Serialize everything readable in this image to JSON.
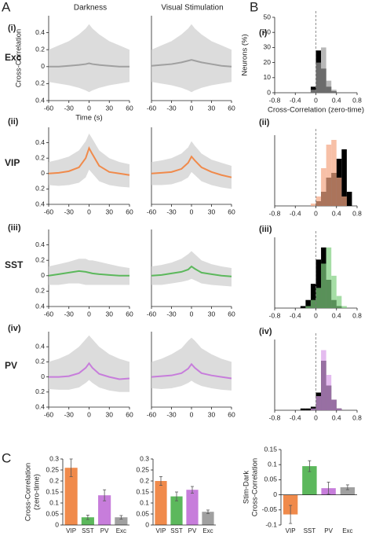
{
  "panel_labels": [
    "A",
    "B",
    "C"
  ],
  "column_titles": [
    "Darkness",
    "Visual Stimulation"
  ],
  "row_labels": [
    {
      "numeral": "(i)",
      "cell": "Exc"
    },
    {
      "numeral": "(ii)",
      "cell": "VIP"
    },
    {
      "numeral": "(iii)",
      "cell": "SST"
    },
    {
      "numeral": "(iv)",
      "cell": "PV"
    }
  ],
  "hist_row_labels": [
    "(i)",
    "(ii)",
    "(iii)",
    "(iv)"
  ],
  "chart_data": [
    {
      "type": "line",
      "ylabel": "Cross-Correlation",
      "xlabel": "Time (s)",
      "x": [
        -60,
        -45,
        -30,
        -15,
        -5,
        0,
        5,
        15,
        30,
        45,
        60
      ],
      "xlim": [
        -60,
        60
      ],
      "xticks": [
        -60,
        -30,
        0,
        30,
        60
      ],
      "ylim": [
        -0.4,
        0.6
      ],
      "yticks": [
        {
          "value": -0.4,
          "label": "0.4"
        },
        {
          "value": -0.2,
          "label": "0.2"
        },
        0,
        {
          "value": 0.2,
          "label": "0.2"
        },
        {
          "value": 0.4,
          "label": "0.4"
        }
      ],
      "band": {
        "color": "#d3d3d3",
        "upper": [
          0.2,
          0.25,
          0.3,
          0.38,
          0.45,
          0.5,
          0.45,
          0.38,
          0.3,
          0.25,
          0.2
        ],
        "lower": [
          -0.18,
          -0.2,
          -0.22,
          -0.25,
          -0.28,
          -0.3,
          -0.28,
          -0.25,
          -0.22,
          -0.2,
          -0.18
        ]
      },
      "series": [
        {
          "color": "#a0a0a0",
          "values": [
            0,
            0,
            0.01,
            0.02,
            0.03,
            0.04,
            0.03,
            0.02,
            0.01,
            0,
            0
          ]
        }
      ]
    },
    {
      "type": "line",
      "x": [
        -60,
        -45,
        -30,
        -15,
        -5,
        0,
        5,
        15,
        30,
        45,
        60
      ],
      "xlim": [
        -60,
        60
      ],
      "xticks": [
        -60,
        -30,
        0,
        30,
        60
      ],
      "ylim": [
        -0.4,
        0.6
      ],
      "band": {
        "color": "#d3d3d3",
        "upper": [
          0.2,
          0.25,
          0.3,
          0.38,
          0.45,
          0.5,
          0.45,
          0.38,
          0.3,
          0.25,
          0.2
        ],
        "lower": [
          -0.18,
          -0.2,
          -0.22,
          -0.25,
          -0.28,
          -0.3,
          -0.28,
          -0.25,
          -0.22,
          -0.2,
          -0.18
        ]
      },
      "series": [
        {
          "color": "#a0a0a0",
          "values": [
            0.01,
            0.02,
            0.03,
            0.05,
            0.07,
            0.08,
            0.07,
            0.05,
            0.03,
            0.01,
            0
          ]
        }
      ]
    },
    {
      "type": "line",
      "x": [
        -60,
        -45,
        -30,
        -15,
        -5,
        0,
        5,
        15,
        30,
        45,
        60
      ],
      "xlim": [
        -60,
        60
      ],
      "xticks": [
        -60,
        -30,
        0,
        30,
        60
      ],
      "ylim": [
        -0.4,
        0.6
      ],
      "yticks": [
        {
          "value": -0.4,
          "label": "0.4"
        },
        {
          "value": -0.2,
          "label": "0.2"
        },
        0,
        {
          "value": 0.2,
          "label": "0.2"
        },
        {
          "value": 0.4,
          "label": "0.4"
        }
      ],
      "band": {
        "color": "#d3d3d3",
        "upper": [
          0.15,
          0.18,
          0.22,
          0.3,
          0.42,
          0.52,
          0.45,
          0.3,
          0.2,
          0.15,
          0.12
        ],
        "lower": [
          -0.15,
          -0.16,
          -0.15,
          -0.12,
          -0.05,
          0.05,
          0,
          -0.1,
          -0.15,
          -0.17,
          -0.18
        ]
      },
      "series": [
        {
          "color": "#f08a4b",
          "values": [
            0,
            0.01,
            0.03,
            0.08,
            0.2,
            0.33,
            0.25,
            0.1,
            0.02,
            0,
            -0.02
          ]
        }
      ]
    },
    {
      "type": "line",
      "x": [
        -60,
        -45,
        -30,
        -15,
        -5,
        0,
        5,
        15,
        30,
        45,
        60
      ],
      "xlim": [
        -60,
        60
      ],
      "xticks": [
        -60,
        -30,
        0,
        30,
        60
      ],
      "ylim": [
        -0.4,
        0.6
      ],
      "band": {
        "color": "#d3d3d3",
        "upper": [
          0.15,
          0.17,
          0.2,
          0.26,
          0.34,
          0.42,
          0.36,
          0.26,
          0.18,
          0.14,
          0.1
        ],
        "lower": [
          -0.15,
          -0.15,
          -0.14,
          -0.1,
          -0.05,
          0.02,
          -0.02,
          -0.1,
          -0.15,
          -0.18,
          -0.2
        ]
      },
      "series": [
        {
          "color": "#f08a4b",
          "values": [
            0,
            0.01,
            0.02,
            0.06,
            0.14,
            0.22,
            0.17,
            0.08,
            0.02,
            -0.02,
            -0.05
          ]
        }
      ]
    },
    {
      "type": "line",
      "x": [
        -60,
        -45,
        -30,
        -15,
        -5,
        0,
        5,
        15,
        30,
        45,
        60
      ],
      "xlim": [
        -60,
        60
      ],
      "xticks": [
        -60,
        -30,
        0,
        30,
        60
      ],
      "ylim": [
        -0.4,
        0.6
      ],
      "yticks": [
        {
          "value": -0.4,
          "label": "0.4"
        },
        {
          "value": -0.2,
          "label": "0.2"
        },
        0,
        {
          "value": 0.2,
          "label": "0.2"
        },
        {
          "value": 0.4,
          "label": "0.4"
        }
      ],
      "band": {
        "color": "#d3d3d3",
        "upper": [
          0.12,
          0.15,
          0.18,
          0.22,
          0.22,
          0.2,
          0.2,
          0.18,
          0.15,
          0.12,
          0.1
        ],
        "lower": [
          -0.12,
          -0.12,
          -0.1,
          -0.1,
          -0.12,
          -0.12,
          -0.12,
          -0.12,
          -0.12,
          -0.12,
          -0.12
        ]
      },
      "series": [
        {
          "color": "#5cb85c",
          "values": [
            0,
            0.02,
            0.04,
            0.06,
            0.05,
            0.04,
            0.03,
            0.02,
            0.01,
            0,
            0
          ]
        }
      ]
    },
    {
      "type": "line",
      "x": [
        -60,
        -45,
        -30,
        -15,
        -5,
        0,
        5,
        15,
        30,
        45,
        60
      ],
      "xlim": [
        -60,
        60
      ],
      "xticks": [
        -60,
        -30,
        0,
        30,
        60
      ],
      "ylim": [
        -0.4,
        0.6
      ],
      "band": {
        "color": "#d3d3d3",
        "upper": [
          0.12,
          0.14,
          0.17,
          0.22,
          0.28,
          0.32,
          0.28,
          0.2,
          0.15,
          0.12,
          0.1
        ],
        "lower": [
          -0.12,
          -0.12,
          -0.1,
          -0.08,
          -0.06,
          -0.04,
          -0.06,
          -0.1,
          -0.12,
          -0.13,
          -0.14
        ]
      },
      "series": [
        {
          "color": "#5cb85c",
          "values": [
            0,
            0.01,
            0.03,
            0.05,
            0.08,
            0.12,
            0.09,
            0.04,
            0.02,
            0,
            -0.01
          ]
        }
      ]
    },
    {
      "type": "line",
      "x": [
        -60,
        -45,
        -30,
        -15,
        -5,
        0,
        5,
        15,
        30,
        45,
        60
      ],
      "xlim": [
        -60,
        60
      ],
      "xticks": [
        -60,
        -30,
        0,
        30,
        60
      ],
      "ylim": [
        -0.4,
        0.6
      ],
      "yticks": [
        {
          "value": -0.4,
          "label": "0.4"
        },
        {
          "value": -0.2,
          "label": "0.2"
        },
        0,
        {
          "value": 0.2,
          "label": "0.2"
        },
        {
          "value": 0.4,
          "label": "0.4"
        }
      ],
      "band": {
        "color": "#d3d3d3",
        "upper": [
          0.2,
          0.24,
          0.3,
          0.4,
          0.5,
          0.55,
          0.5,
          0.4,
          0.3,
          0.24,
          0.2
        ],
        "lower": [
          -0.16,
          -0.17,
          -0.17,
          -0.14,
          -0.08,
          -0.04,
          -0.08,
          -0.14,
          -0.18,
          -0.2,
          -0.2
        ]
      },
      "series": [
        {
          "color": "#c77ddb",
          "values": [
            0,
            0,
            0.01,
            0.05,
            0.12,
            0.18,
            0.12,
            0.04,
            0,
            -0.03,
            -0.02
          ]
        }
      ]
    },
    {
      "type": "line",
      "x": [
        -60,
        -45,
        -30,
        -15,
        -5,
        0,
        5,
        15,
        30,
        45,
        60
      ],
      "xlim": [
        -60,
        60
      ],
      "xticks": [
        -60,
        -30,
        0,
        30,
        60
      ],
      "ylim": [
        -0.4,
        0.6
      ],
      "band": {
        "color": "#d3d3d3",
        "upper": [
          0.2,
          0.24,
          0.3,
          0.38,
          0.48,
          0.52,
          0.48,
          0.38,
          0.3,
          0.24,
          0.2
        ],
        "lower": [
          -0.15,
          -0.16,
          -0.15,
          -0.12,
          -0.08,
          -0.05,
          -0.08,
          -0.12,
          -0.15,
          -0.17,
          -0.18
        ]
      },
      "series": [
        {
          "color": "#c77ddb",
          "values": [
            0,
            0.01,
            0.02,
            0.05,
            0.11,
            0.17,
            0.12,
            0.05,
            0.02,
            0,
            -0.02
          ]
        }
      ]
    },
    {
      "type": "histogram",
      "ylabel": "Neurons (%)",
      "xlabel": "Cross-Correlation (zero-time)",
      "bins": [
        -0.8,
        -0.7,
        -0.6,
        -0.5,
        -0.4,
        -0.3,
        -0.2,
        -0.1,
        0,
        0.1,
        0.2,
        0.3,
        0.4,
        0.5,
        0.6,
        0.7,
        0.8
      ],
      "xlim": [
        -0.8,
        0.8
      ],
      "xticks": [
        -0.8,
        -0.4,
        0,
        0.4,
        0.8
      ],
      "ylim": [
        0,
        50
      ],
      "yticks": [
        0,
        10,
        20,
        30,
        40,
        50
      ],
      "reference_x": 0,
      "series": [
        {
          "color": "#000000",
          "values": [
            0,
            0,
            0,
            0,
            0,
            0,
            0,
            4,
            28,
            16,
            4,
            1,
            0,
            0,
            0,
            0
          ]
        },
        {
          "color": "#9a9a9a",
          "values": [
            0,
            0,
            0,
            0,
            0,
            0,
            0,
            2,
            20,
            30,
            8,
            2,
            0,
            0,
            0,
            0
          ]
        }
      ]
    },
    {
      "type": "histogram",
      "bins": [
        -0.8,
        -0.7,
        -0.6,
        -0.5,
        -0.4,
        -0.3,
        -0.2,
        -0.1,
        0,
        0.1,
        0.2,
        0.3,
        0.4,
        0.5,
        0.6,
        0.7,
        0.8
      ],
      "xlim": [
        -0.8,
        0.8
      ],
      "xticks": [
        -0.8,
        -0.4,
        0,
        0.4,
        0.8
      ],
      "ylim": [
        0,
        30
      ],
      "reference_x": 0,
      "series": [
        {
          "color": "#000000",
          "values": [
            0,
            0,
            0,
            0,
            0,
            0,
            0,
            0,
            2,
            6,
            12,
            14,
            20,
            24,
            6,
            0
          ]
        },
        {
          "color": "#f4a582",
          "values": [
            0,
            0,
            0,
            0,
            0,
            0,
            0,
            1,
            4,
            16,
            26,
            28,
            12,
            4,
            0,
            0
          ]
        }
      ]
    },
    {
      "type": "histogram",
      "bins": [
        -0.8,
        -0.7,
        -0.6,
        -0.5,
        -0.4,
        -0.3,
        -0.2,
        -0.1,
        0,
        0.1,
        0.2,
        0.3,
        0.4,
        0.5,
        0.6,
        0.7,
        0.8
      ],
      "xlim": [
        -0.8,
        0.8
      ],
      "xticks": [
        -0.8,
        -0.4,
        0,
        0.4,
        0.8
      ],
      "ylim": [
        0,
        35
      ],
      "reference_x": 0,
      "series": [
        {
          "color": "#000000",
          "values": [
            0,
            0,
            0,
            0,
            0,
            1,
            4,
            12,
            24,
            30,
            14,
            4,
            1,
            0,
            0,
            0
          ]
        },
        {
          "color": "#7fcf7f",
          "values": [
            0,
            0,
            0,
            0,
            0,
            0,
            1,
            4,
            10,
            22,
            30,
            16,
            6,
            1,
            0,
            0
          ]
        }
      ]
    },
    {
      "type": "histogram",
      "bins": [
        -0.8,
        -0.7,
        -0.6,
        -0.5,
        -0.4,
        -0.3,
        -0.2,
        -0.1,
        0,
        0.1,
        0.2,
        0.3,
        0.4,
        0.5,
        0.6,
        0.7,
        0.8
      ],
      "xlim": [
        -0.8,
        0.8
      ],
      "xticks": [
        -0.8,
        -0.4,
        0,
        0.4,
        0.8
      ],
      "ylim": [
        0,
        40
      ],
      "reference_x": 0,
      "series": [
        {
          "color": "#000000",
          "values": [
            0,
            0,
            0,
            0,
            0,
            1,
            1,
            2,
            10,
            28,
            14,
            6,
            1,
            0,
            0,
            0
          ]
        },
        {
          "color": "#d99ee8",
          "values": [
            0,
            0,
            0,
            0,
            0,
            0,
            0,
            1,
            8,
            34,
            20,
            6,
            1,
            0,
            0,
            0
          ]
        }
      ]
    },
    {
      "type": "bar",
      "ylabel": [
        "Cross-Correlation",
        "(zero-time)"
      ],
      "categories": [
        "VIP",
        "SST",
        "PV",
        "Exc"
      ],
      "colors": [
        "#f08a4b",
        "#5cb85c",
        "#c77ddb",
        "#a0a0a0"
      ],
      "values": [
        0.26,
        0.035,
        0.135,
        0.035
      ],
      "errors": [
        0.04,
        0.01,
        0.025,
        0.008
      ],
      "ylim": [
        0,
        0.3
      ],
      "yticks": [
        0,
        0.05,
        0.1,
        0.15,
        0.2,
        0.25,
        0.3
      ]
    },
    {
      "type": "bar",
      "categories": [
        "VIP",
        "SST",
        "PV",
        "Exc"
      ],
      "colors": [
        "#f08a4b",
        "#5cb85c",
        "#c77ddb",
        "#a0a0a0"
      ],
      "values": [
        0.2,
        0.13,
        0.16,
        0.06
      ],
      "errors": [
        0.02,
        0.02,
        0.015,
        0.008
      ],
      "ylim": [
        0,
        0.3
      ],
      "yticks": [
        0,
        0.05,
        0.1,
        0.15,
        0.2,
        0.25,
        0.3
      ]
    },
    {
      "type": "bar",
      "ylabel": [
        "Stim-Dark",
        "Cross-Correlation"
      ],
      "categories": [
        "VIP",
        "SST",
        "PV",
        "Exc"
      ],
      "colors": [
        "#f08a4b",
        "#5cb85c",
        "#c77ddb",
        "#a0a0a0"
      ],
      "values": [
        -0.065,
        0.095,
        0.022,
        0.025
      ],
      "errors": [
        0.03,
        0.018,
        0.02,
        0.008
      ],
      "ylim": [
        -0.1,
        0.15
      ],
      "yticks": [
        -0.1,
        -0.05,
        0,
        0.05,
        0.1,
        0.15
      ]
    }
  ]
}
